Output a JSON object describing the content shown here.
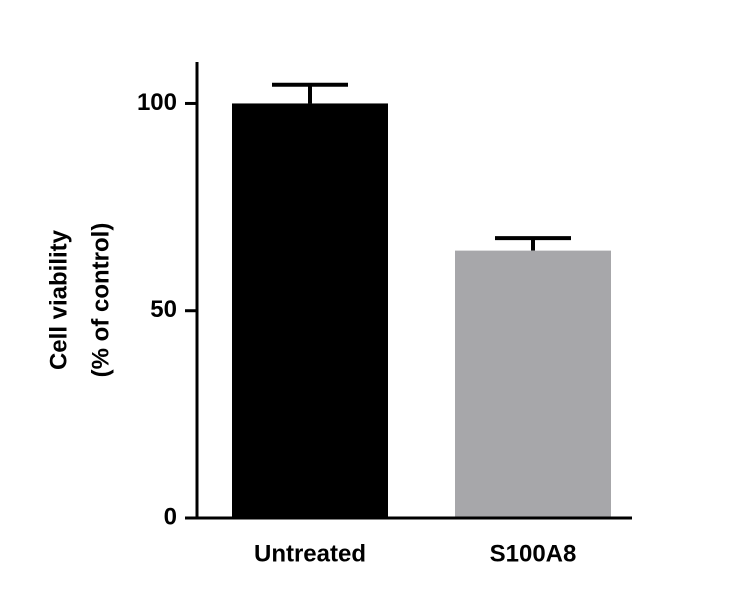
{
  "chart_data": {
    "type": "bar",
    "ylabel": [
      "Cell viability",
      "(% of control)"
    ],
    "categories": [
      "Untreated",
      "S100A8"
    ],
    "values": [
      100,
      64.5
    ],
    "errors": [
      4.5,
      3
    ],
    "colors": [
      "#000000",
      "#a7a7aa"
    ],
    "ylim": [
      0,
      110
    ],
    "yticks": [
      0,
      50,
      100
    ],
    "grid": false
  }
}
